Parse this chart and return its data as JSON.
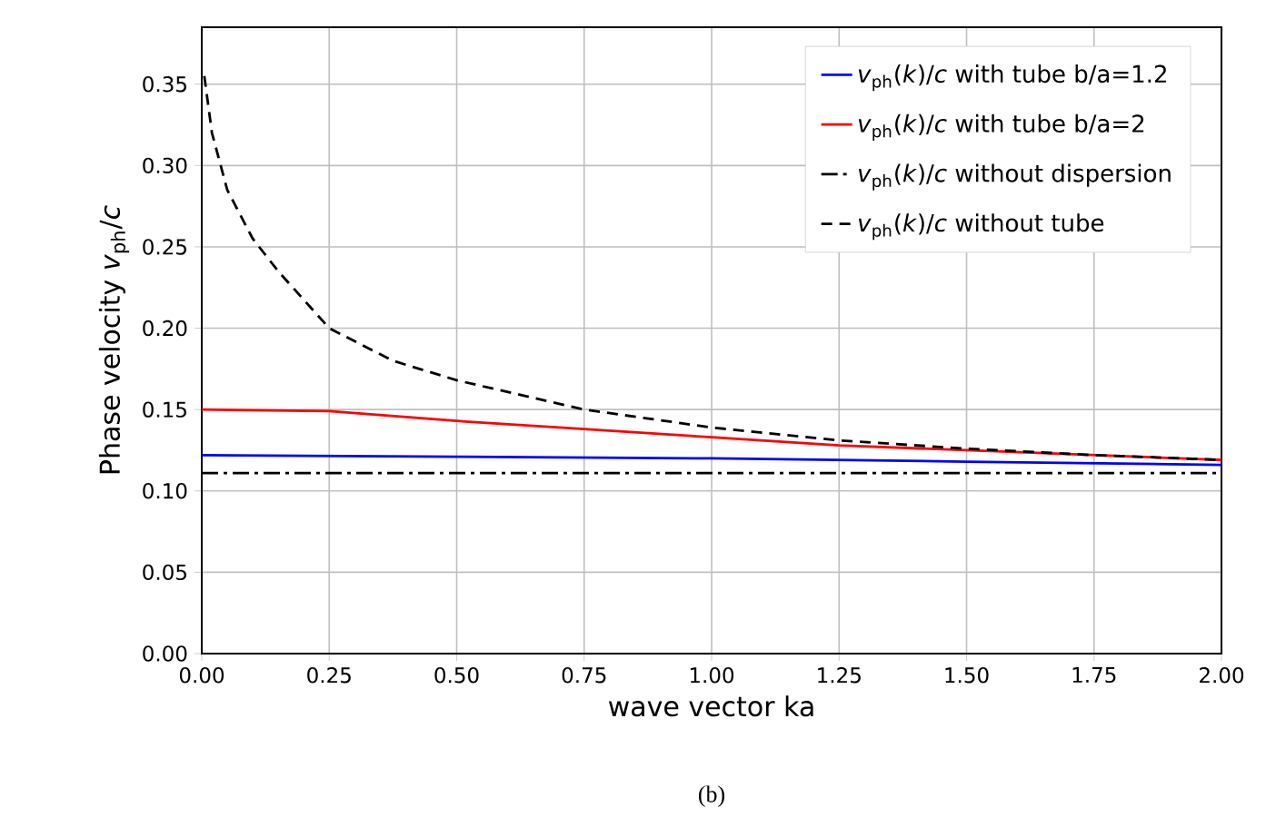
{
  "chart_data": {
    "type": "line",
    "xlabel": "wave vector ka",
    "ylabel": "Phase velocity *v*$_{ph}$/*c*",
    "xlim": [
      0,
      2
    ],
    "xticks": [
      {
        "value": 0,
        "label": "0.00"
      },
      {
        "value": 0.25,
        "label": "0.25"
      },
      {
        "value": 0.5,
        "label": "0.50"
      },
      {
        "value": 0.75,
        "label": "0.75"
      },
      {
        "value": 1,
        "label": "1.00"
      },
      {
        "value": 1.25,
        "label": "1.25"
      },
      {
        "value": 1.5,
        "label": "1.50"
      },
      {
        "value": 1.75,
        "label": "1.75"
      },
      {
        "value": 2,
        "label": "2.00"
      }
    ],
    "ylim": [
      0,
      0.385
    ],
    "yticks": [
      {
        "value": 0,
        "label": "0.00"
      },
      {
        "value": 0.05,
        "label": "0.05"
      },
      {
        "value": 0.1,
        "label": "0.10"
      },
      {
        "value": 0.15,
        "label": "0.15"
      },
      {
        "value": 0.2,
        "label": "0.20"
      },
      {
        "value": 0.25,
        "label": "0.25"
      },
      {
        "value": 0.3,
        "label": "0.30"
      },
      {
        "value": 0.35,
        "label": "0.35"
      }
    ],
    "grid": true,
    "legend": "top right",
    "series": [
      {
        "name": "*v*$_{ph}$(*k*)/*c* with tube b/a=1.2",
        "color": "#0000ff",
        "line_style": "solid",
        "x": [
          0,
          0.5,
          1,
          1.5,
          2
        ],
        "values": [
          0.122,
          0.121,
          0.12,
          0.118,
          0.116
        ]
      },
      {
        "name": "*v*$_{ph}$(*k*)/*c* with tube b/a=2",
        "color": "#ff0000",
        "line_style": "solid",
        "x": [
          0,
          0.25,
          0.5,
          0.75,
          1,
          1.25,
          1.5,
          1.75,
          2
        ],
        "values": [
          0.15,
          0.149,
          0.143,
          0.138,
          0.133,
          0.128,
          0.125,
          0.122,
          0.119
        ]
      },
      {
        "name": "*v*$_{ph}$(*k*)/*c* without dispersion",
        "color": "#000000",
        "line_style": "dashdot",
        "x": [
          0,
          2
        ],
        "values": [
          0.111,
          0.111
        ]
      },
      {
        "name": "*v*$_{ph}$(*k*)/*c* without tube",
        "color": "#000000",
        "line_style": "dashed",
        "x": [
          0.005,
          0.02,
          0.05,
          0.1,
          0.15,
          0.25,
          0.375,
          0.5,
          0.75,
          1,
          1.25,
          1.5,
          1.75,
          2
        ],
        "values": [
          0.355,
          0.32,
          0.285,
          0.255,
          0.235,
          0.2,
          0.18,
          0.168,
          0.15,
          0.139,
          0.131,
          0.126,
          0.122,
          0.119
        ]
      }
    ],
    "annotations": [
      "(b)"
    ]
  }
}
